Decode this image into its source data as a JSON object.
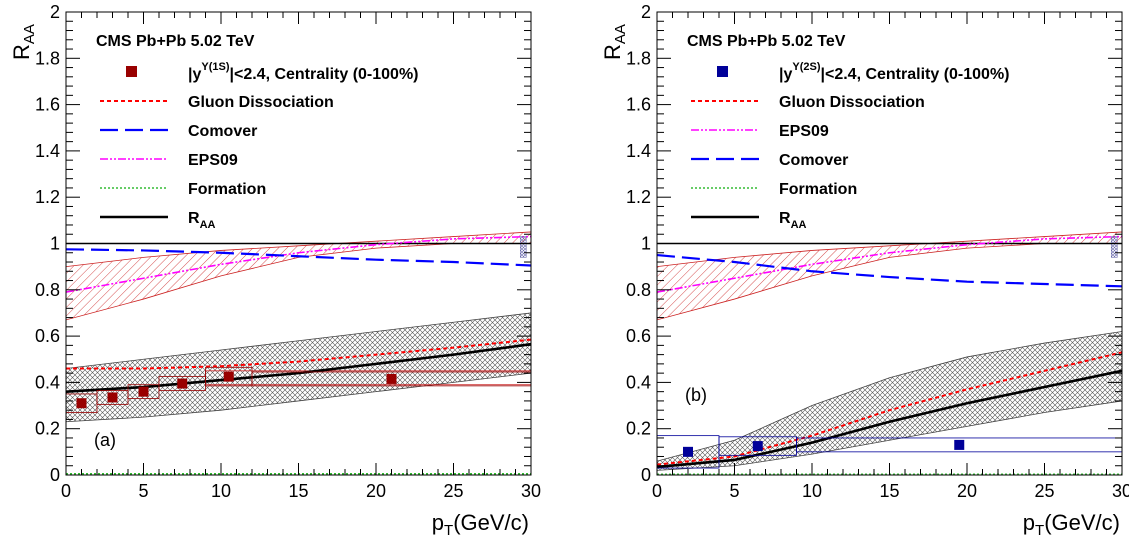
{
  "chart_data": [
    {
      "type": "line",
      "panel_label": "(a)",
      "header": "CMS Pb+Pb 5.02 TeV",
      "xlabel": "p",
      "xlabel_sub": "T",
      "xlabel_unit": "(GeV/c)",
      "ylabel": "R",
      "ylabel_sub": "AA",
      "xlim": [
        0,
        30
      ],
      "ylim": [
        0,
        2
      ],
      "xticks": [
        "0",
        "5",
        "10",
        "15",
        "20",
        "25",
        "30"
      ],
      "yticks": [
        "0",
        "0.2",
        "0.4",
        "0.6",
        "0.8",
        "1",
        "1.2",
        "1.4",
        "1.6",
        "1.8",
        "2"
      ],
      "legend": {
        "data_pre": "|y",
        "data_sup": "Υ(1S)",
        "data_post": "|<2.4, Centrality (0-100%)",
        "lines": [
          {
            "key": "gluon",
            "label": "Gluon Dissociation"
          },
          {
            "key": "comover",
            "label": "Comover"
          },
          {
            "key": "eps09",
            "label": "EPS09"
          },
          {
            "key": "formation",
            "label": "Formation"
          },
          {
            "key": "raa",
            "label": "R",
            "sub": "AA"
          }
        ]
      },
      "data_color": "#990000",
      "data_points": [
        {
          "x": 1,
          "y": 0.31,
          "xlo": 0,
          "xhi": 2,
          "syst": 0.04
        },
        {
          "x": 3,
          "y": 0.335,
          "xlo": 2,
          "xhi": 4,
          "syst": 0.03
        },
        {
          "x": 5,
          "y": 0.36,
          "xlo": 4,
          "xhi": 6,
          "syst": 0.03
        },
        {
          "x": 7.5,
          "y": 0.395,
          "xlo": 6,
          "xhi": 9,
          "syst": 0.03
        },
        {
          "x": 10.5,
          "y": 0.425,
          "xlo": 9,
          "xhi": 12,
          "syst": 0.04
        },
        {
          "x": 21,
          "y": 0.415,
          "xlo": 12,
          "xhi": 30,
          "syst": 0.03
        }
      ],
      "global_uncertainty": {
        "x": 29.5,
        "lo": 0.94,
        "hi": 1.03
      },
      "curves": {
        "gluon": {
          "x": [
            0,
            5,
            10,
            15,
            20,
            25,
            30
          ],
          "y": [
            0.46,
            0.46,
            0.47,
            0.49,
            0.52,
            0.55,
            0.585
          ]
        },
        "comover": {
          "x": [
            0,
            5,
            10,
            15,
            20,
            25,
            30
          ],
          "y": [
            0.975,
            0.97,
            0.96,
            0.945,
            0.93,
            0.92,
            0.905
          ]
        },
        "eps09": {
          "x": [
            0,
            5,
            10,
            15,
            20,
            25,
            30
          ],
          "y": [
            0.79,
            0.85,
            0.91,
            0.96,
            0.995,
            1.02,
            1.03
          ]
        },
        "formation": {
          "x": [
            0,
            30
          ],
          "y": [
            0.005,
            0.005
          ]
        },
        "raa": {
          "x": [
            0,
            5,
            10,
            15,
            20,
            25,
            30
          ],
          "y": [
            0.36,
            0.38,
            0.41,
            0.44,
            0.48,
            0.52,
            0.565
          ]
        }
      },
      "bands": {
        "eps09_band": {
          "x": [
            0,
            5,
            10,
            15,
            20,
            25,
            30
          ],
          "lo": [
            0.67,
            0.76,
            0.86,
            0.94,
            0.98,
            1.0,
            1.0
          ],
          "hi": [
            0.9,
            0.94,
            0.97,
            0.99,
            1.01,
            1.03,
            1.05
          ]
        },
        "raa_band": {
          "x": [
            0,
            5,
            10,
            15,
            20,
            25,
            30
          ],
          "lo": [
            0.23,
            0.25,
            0.28,
            0.32,
            0.36,
            0.4,
            0.44
          ],
          "hi": [
            0.46,
            0.5,
            0.54,
            0.58,
            0.62,
            0.66,
            0.7
          ]
        }
      },
      "cold_box": {
        "x0": 9,
        "x1": 30,
        "lo": 0.39,
        "hi": 0.45
      }
    },
    {
      "type": "line",
      "panel_label": "(b)",
      "header": "CMS Pb+Pb 5.02 TeV",
      "xlabel": "p",
      "xlabel_sub": "T",
      "xlabel_unit": "(GeV/c)",
      "ylabel": "R",
      "ylabel_sub": "AA",
      "xlim": [
        0,
        30
      ],
      "ylim": [
        0,
        2
      ],
      "xticks": [
        "0",
        "5",
        "10",
        "15",
        "20",
        "25",
        "30"
      ],
      "yticks": [
        "0",
        "0.2",
        "0.4",
        "0.6",
        "0.8",
        "1",
        "1.2",
        "1.4",
        "1.6",
        "1.8",
        "2"
      ],
      "legend": {
        "data_pre": "|y",
        "data_sup": "Υ(2S)",
        "data_post": "|<2.4, Centrality (0-100%)",
        "lines": [
          {
            "key": "gluon",
            "label": "Gluon Dissociation"
          },
          {
            "key": "eps09",
            "label": "EPS09"
          },
          {
            "key": "comover",
            "label": "Comover"
          },
          {
            "key": "formation",
            "label": "Formation"
          },
          {
            "key": "raa",
            "label": "R",
            "sub": "AA"
          }
        ]
      },
      "data_color": "#000099",
      "data_points": [
        {
          "x": 2,
          "y": 0.1,
          "xlo": 0,
          "xhi": 4,
          "syst": 0.07
        },
        {
          "x": 6.5,
          "y": 0.125,
          "xlo": 4,
          "xhi": 9,
          "syst": 0.04
        },
        {
          "x": 19.5,
          "y": 0.13,
          "xlo": 9,
          "xhi": 30,
          "syst": 0.03
        }
      ],
      "global_uncertainty": {
        "x": 29.5,
        "lo": 0.94,
        "hi": 1.03
      },
      "curves": {
        "gluon": {
          "x": [
            0,
            5,
            10,
            15,
            20,
            25,
            30
          ],
          "y": [
            0.045,
            0.08,
            0.17,
            0.28,
            0.37,
            0.45,
            0.53
          ]
        },
        "comover": {
          "x": [
            0,
            5,
            10,
            15,
            20,
            25,
            30
          ],
          "y": [
            0.95,
            0.92,
            0.88,
            0.855,
            0.835,
            0.825,
            0.815
          ]
        },
        "eps09": {
          "x": [
            0,
            5,
            10,
            15,
            20,
            25,
            30
          ],
          "y": [
            0.79,
            0.85,
            0.91,
            0.96,
            0.995,
            1.02,
            1.03
          ]
        },
        "formation": {
          "x": [
            0,
            30
          ],
          "y": [
            0.003,
            0.003
          ]
        },
        "raa": {
          "x": [
            0,
            5,
            10,
            15,
            20,
            25,
            30
          ],
          "y": [
            0.035,
            0.065,
            0.14,
            0.23,
            0.31,
            0.38,
            0.45
          ]
        }
      },
      "bands": {
        "eps09_band": {
          "x": [
            0,
            5,
            10,
            15,
            20,
            25,
            30
          ],
          "lo": [
            0.67,
            0.76,
            0.86,
            0.94,
            0.98,
            1.0,
            1.0
          ],
          "hi": [
            0.9,
            0.94,
            0.97,
            0.99,
            1.01,
            1.03,
            1.05
          ]
        },
        "raa_band": {
          "x": [
            0,
            5,
            10,
            15,
            20,
            25,
            30
          ],
          "lo": [
            0.02,
            0.04,
            0.09,
            0.15,
            0.21,
            0.27,
            0.32
          ],
          "hi": [
            0.06,
            0.15,
            0.3,
            0.42,
            0.51,
            0.57,
            0.62
          ]
        }
      },
      "cold_box": null
    }
  ],
  "colors": {
    "gluon": "#ff0000",
    "comover": "#0000ff",
    "eps09": "#ff00ff",
    "formation": "#33bb33",
    "raa": "#000000",
    "eps09_band": "#cc2222",
    "raa_band": "#555555"
  }
}
